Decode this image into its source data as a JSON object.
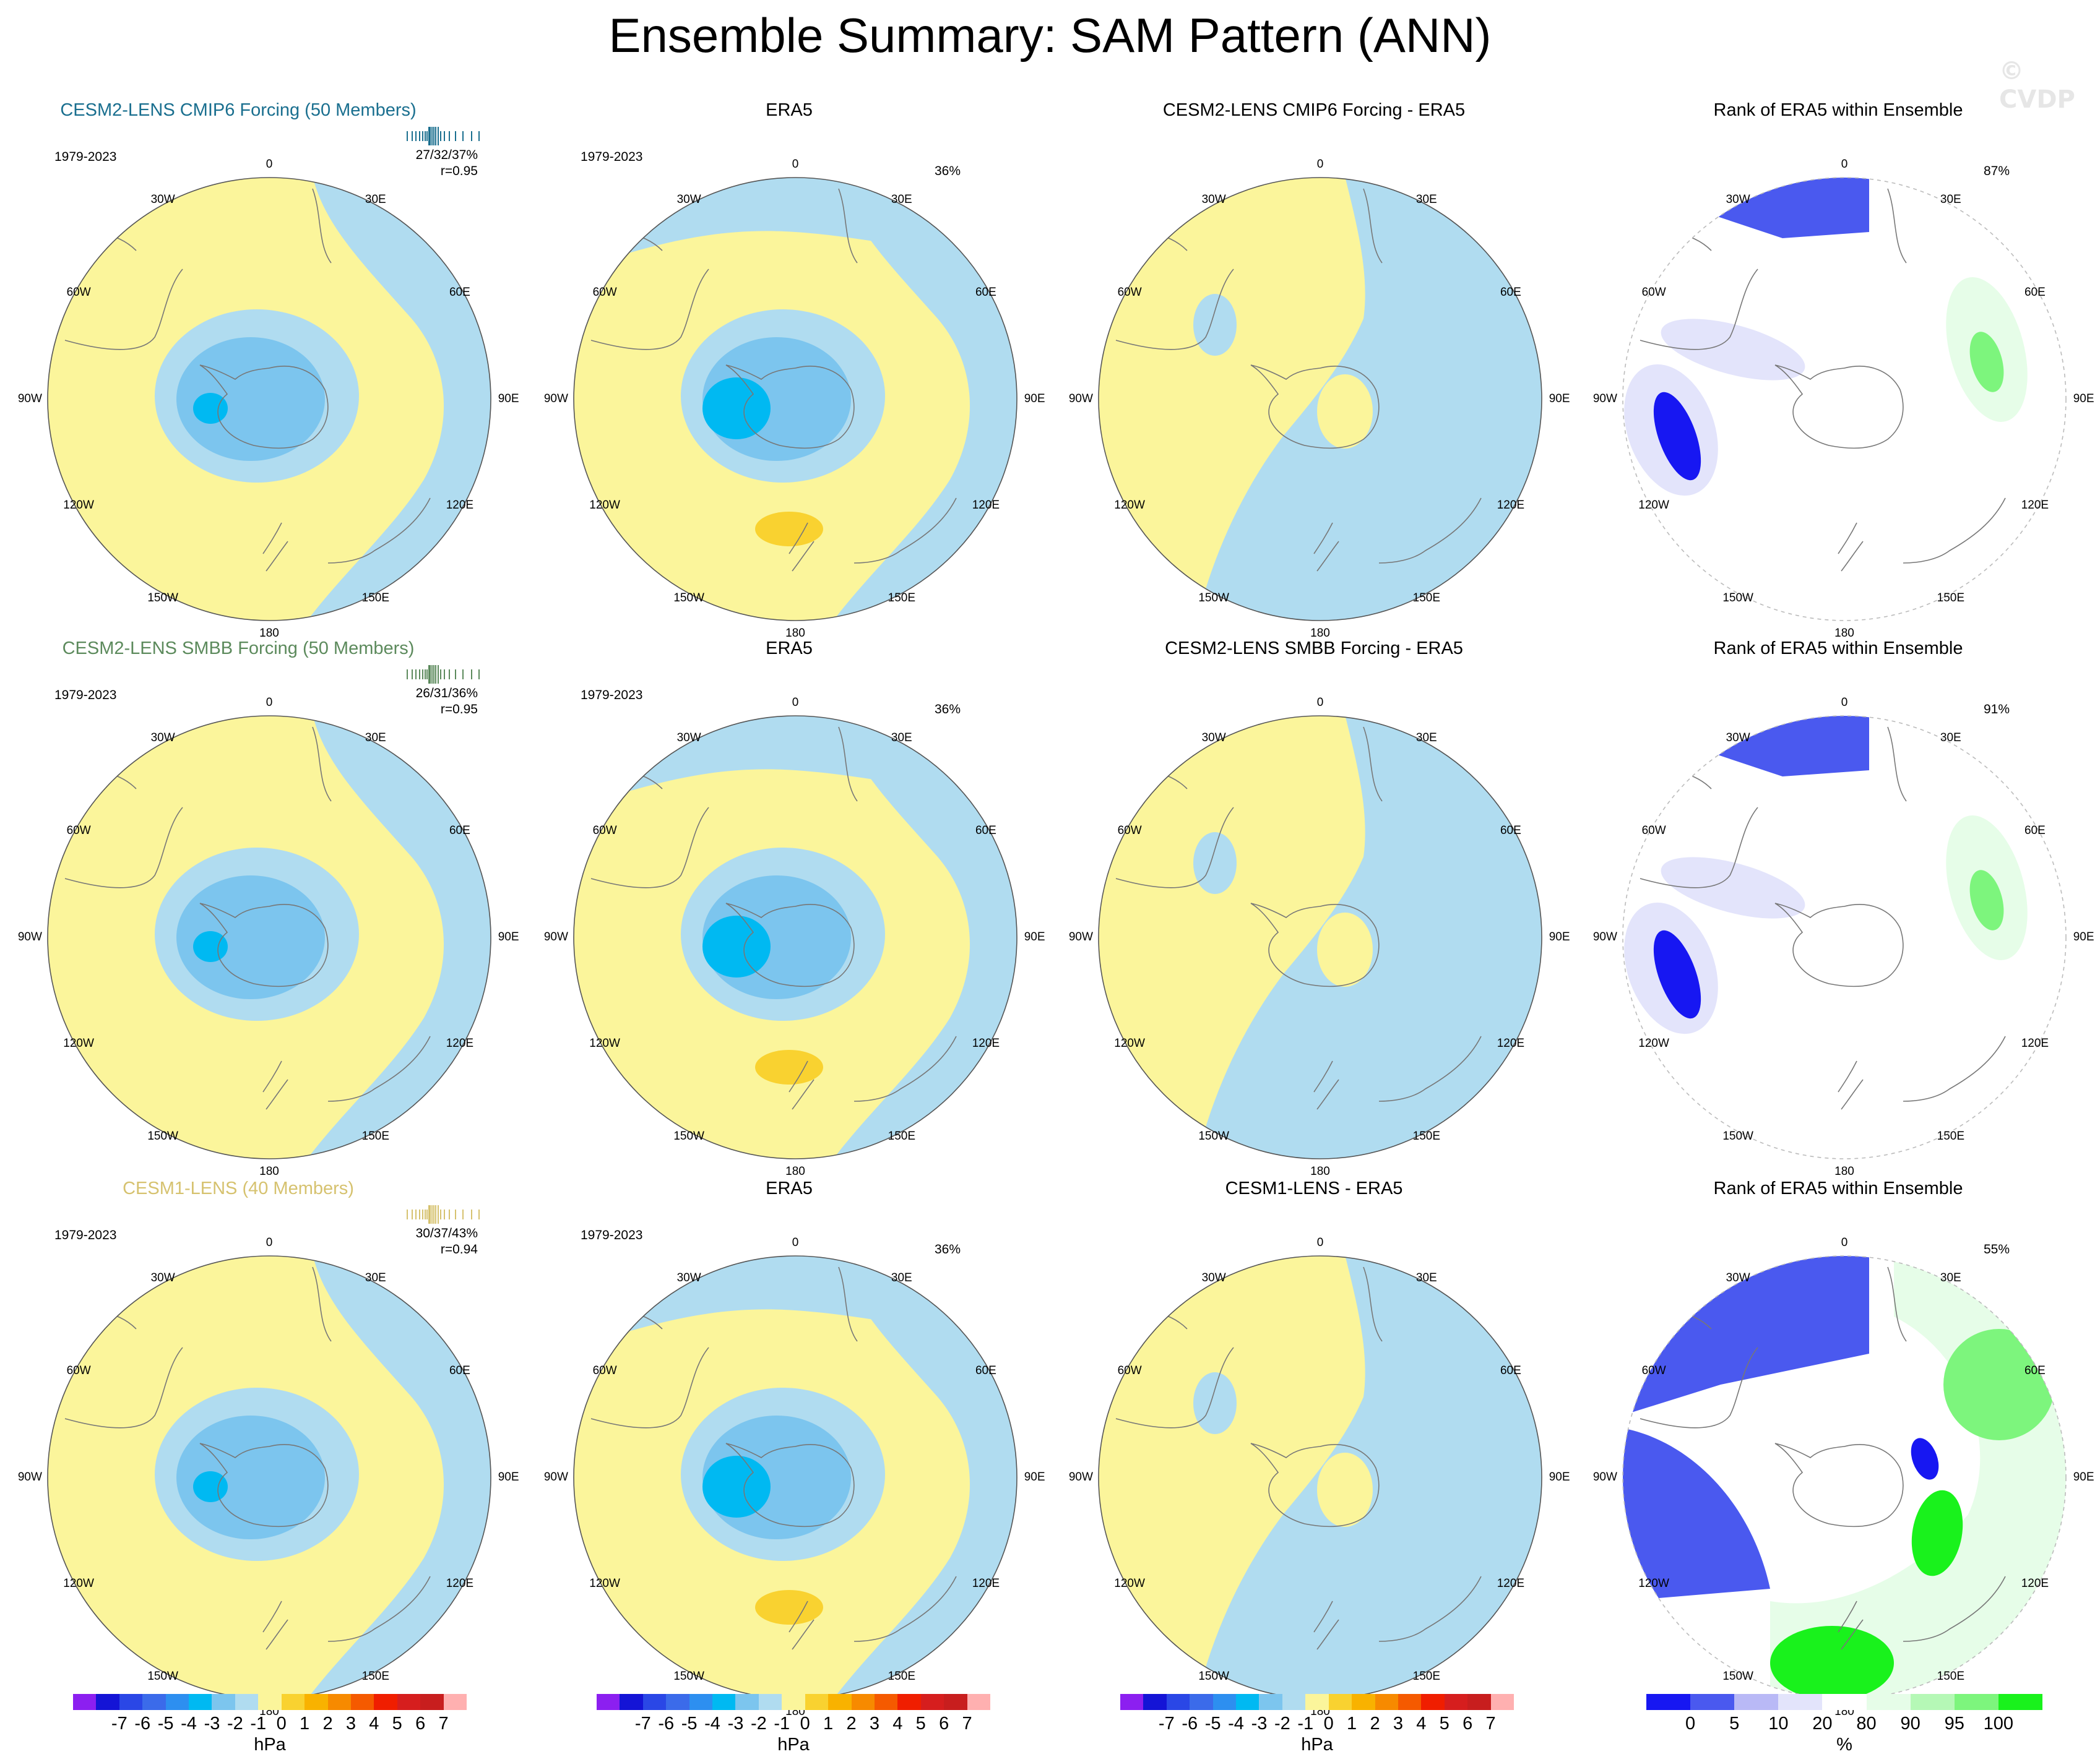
{
  "title": "Ensemble Summary: SAM Pattern (ANN)",
  "watermark": "© CVDP",
  "lon_labels": [
    "0",
    "30E",
    "60E",
    "90E",
    "120E",
    "150E",
    "180",
    "150W",
    "120W",
    "90W",
    "60W",
    "30W"
  ],
  "colors": {
    "ocean_pos": "#fbf59b",
    "neg1": "#b0dcf0",
    "neg2": "#7cc5ee",
    "neg3": "#52aef0",
    "neg4": "#00b9f2",
    "pos2": "#f9d230",
    "rank_white": "#ffffff",
    "rank_lav1": "#e3e4fb",
    "rank_lav2": "#b9b9f6",
    "rank_blue": "#4a59ef",
    "rank_dark": "#1717f2",
    "rank_g1": "#e6fde8",
    "rank_g2": "#b5f8b6",
    "rank_g3": "#7df57d",
    "rank_g4": "#19f21c"
  },
  "rows": [
    {
      "model": {
        "title": "CESM2-LENS CMIP6 Forcing (50 Members)",
        "title_color": "#1a6f8f",
        "period": "1979-2023",
        "stats_line1": "27/32/37%",
        "stats_line2": "r=0.95"
      },
      "obs": {
        "title": "ERA5",
        "period": "1979-2023",
        "pct": "36%"
      },
      "diff": {
        "title": "CESM2-LENS CMIP6 Forcing - ERA5"
      },
      "rank": {
        "title": "Rank of ERA5 within Ensemble",
        "pct": "87%"
      }
    },
    {
      "model": {
        "title": "CESM2-LENS SMBB Forcing (50 Members)",
        "title_color": "#5c8a5c",
        "period": "1979-2023",
        "stats_line1": "26/31/36%",
        "stats_line2": "r=0.95"
      },
      "obs": {
        "title": "ERA5",
        "period": "1979-2023",
        "pct": "36%"
      },
      "diff": {
        "title": "CESM2-LENS SMBB Forcing - ERA5"
      },
      "rank": {
        "title": "Rank of ERA5 within Ensemble",
        "pct": "91%"
      }
    },
    {
      "model": {
        "title": "CESM1-LENS (40 Members)",
        "title_color": "#d6c26f",
        "period": "1979-2023",
        "stats_line1": "30/37/43%",
        "stats_line2": "r=0.94"
      },
      "obs": {
        "title": "ERA5",
        "period": "1979-2023",
        "pct": "36%"
      },
      "diff": {
        "title": "CESM1-LENS - ERA5"
      },
      "rank": {
        "title": "Rank of ERA5 within Ensemble",
        "pct": "55%"
      }
    }
  ],
  "colorbar_hpa": {
    "colors": [
      "#8c1ff0",
      "#1414d6",
      "#2a47e6",
      "#3b6bea",
      "#2d8ff0",
      "#00b9f2",
      "#7cc5ee",
      "#b0dcf0",
      "#fbf59b",
      "#f9d230",
      "#f9b200",
      "#f78a00",
      "#f55a00",
      "#f01e00",
      "#d61e1e",
      "#c81e1e",
      "#ffb0b0"
    ],
    "ticks": [
      "-7",
      "-6",
      "-5",
      "-4",
      "-3",
      "-2",
      "-1",
      "0",
      "1",
      "2",
      "3",
      "4",
      "5",
      "6",
      "7"
    ],
    "unit": "hPa"
  },
  "colorbar_rank": {
    "colors": [
      "#1717f2",
      "#4a59ef",
      "#b9b9f6",
      "#e3e4fb",
      "#ffffff",
      "#e6fde8",
      "#b5f8b6",
      "#7df57d",
      "#19f21c"
    ],
    "ticks": [
      "0",
      "5",
      "10",
      "20",
      "80",
      "90",
      "95",
      "100"
    ],
    "unit": "%"
  },
  "chart_data": [
    {
      "type": "heatmap",
      "title": "Ensemble Summary: SAM Pattern (ANN)",
      "description_rows": [
        "CESM2-LENS CMIP6 Forcing (50 Members)",
        "CESM2-LENS SMBB Forcing (50 Members)",
        "CESM1-LENS (40 Members)"
      ],
      "description_columns": [
        "model",
        "ERA5",
        "model - ERA5",
        "Rank of ERA5 within Ensemble"
      ],
      "projection": "south polar stereographic",
      "hpa_levels": [
        -7,
        -6,
        -5,
        -4,
        -3,
        -2,
        -1,
        0,
        1,
        2,
        3,
        4,
        5,
        6,
        7
      ],
      "rank_levels": [
        0,
        5,
        10,
        20,
        80,
        90,
        95,
        100
      ],
      "pattern_stats": [
        {
          "model": "CESM2-LENS CMIP6 Forcing (50 Members)",
          "pct_var": "27/32/37%",
          "r": 0.95,
          "rank_pct": 87
        },
        {
          "model": "CESM2-LENS SMBB Forcing (50 Members)",
          "pct_var": "26/31/36%",
          "r": 0.95,
          "rank_pct": 91
        },
        {
          "model": "CESM1-LENS (40 Members)",
          "pct_var": "30/37/43%",
          "r": 0.94,
          "rank_pct": 55
        }
      ],
      "era5_pct_var": 36,
      "period": "1979-2023"
    }
  ]
}
